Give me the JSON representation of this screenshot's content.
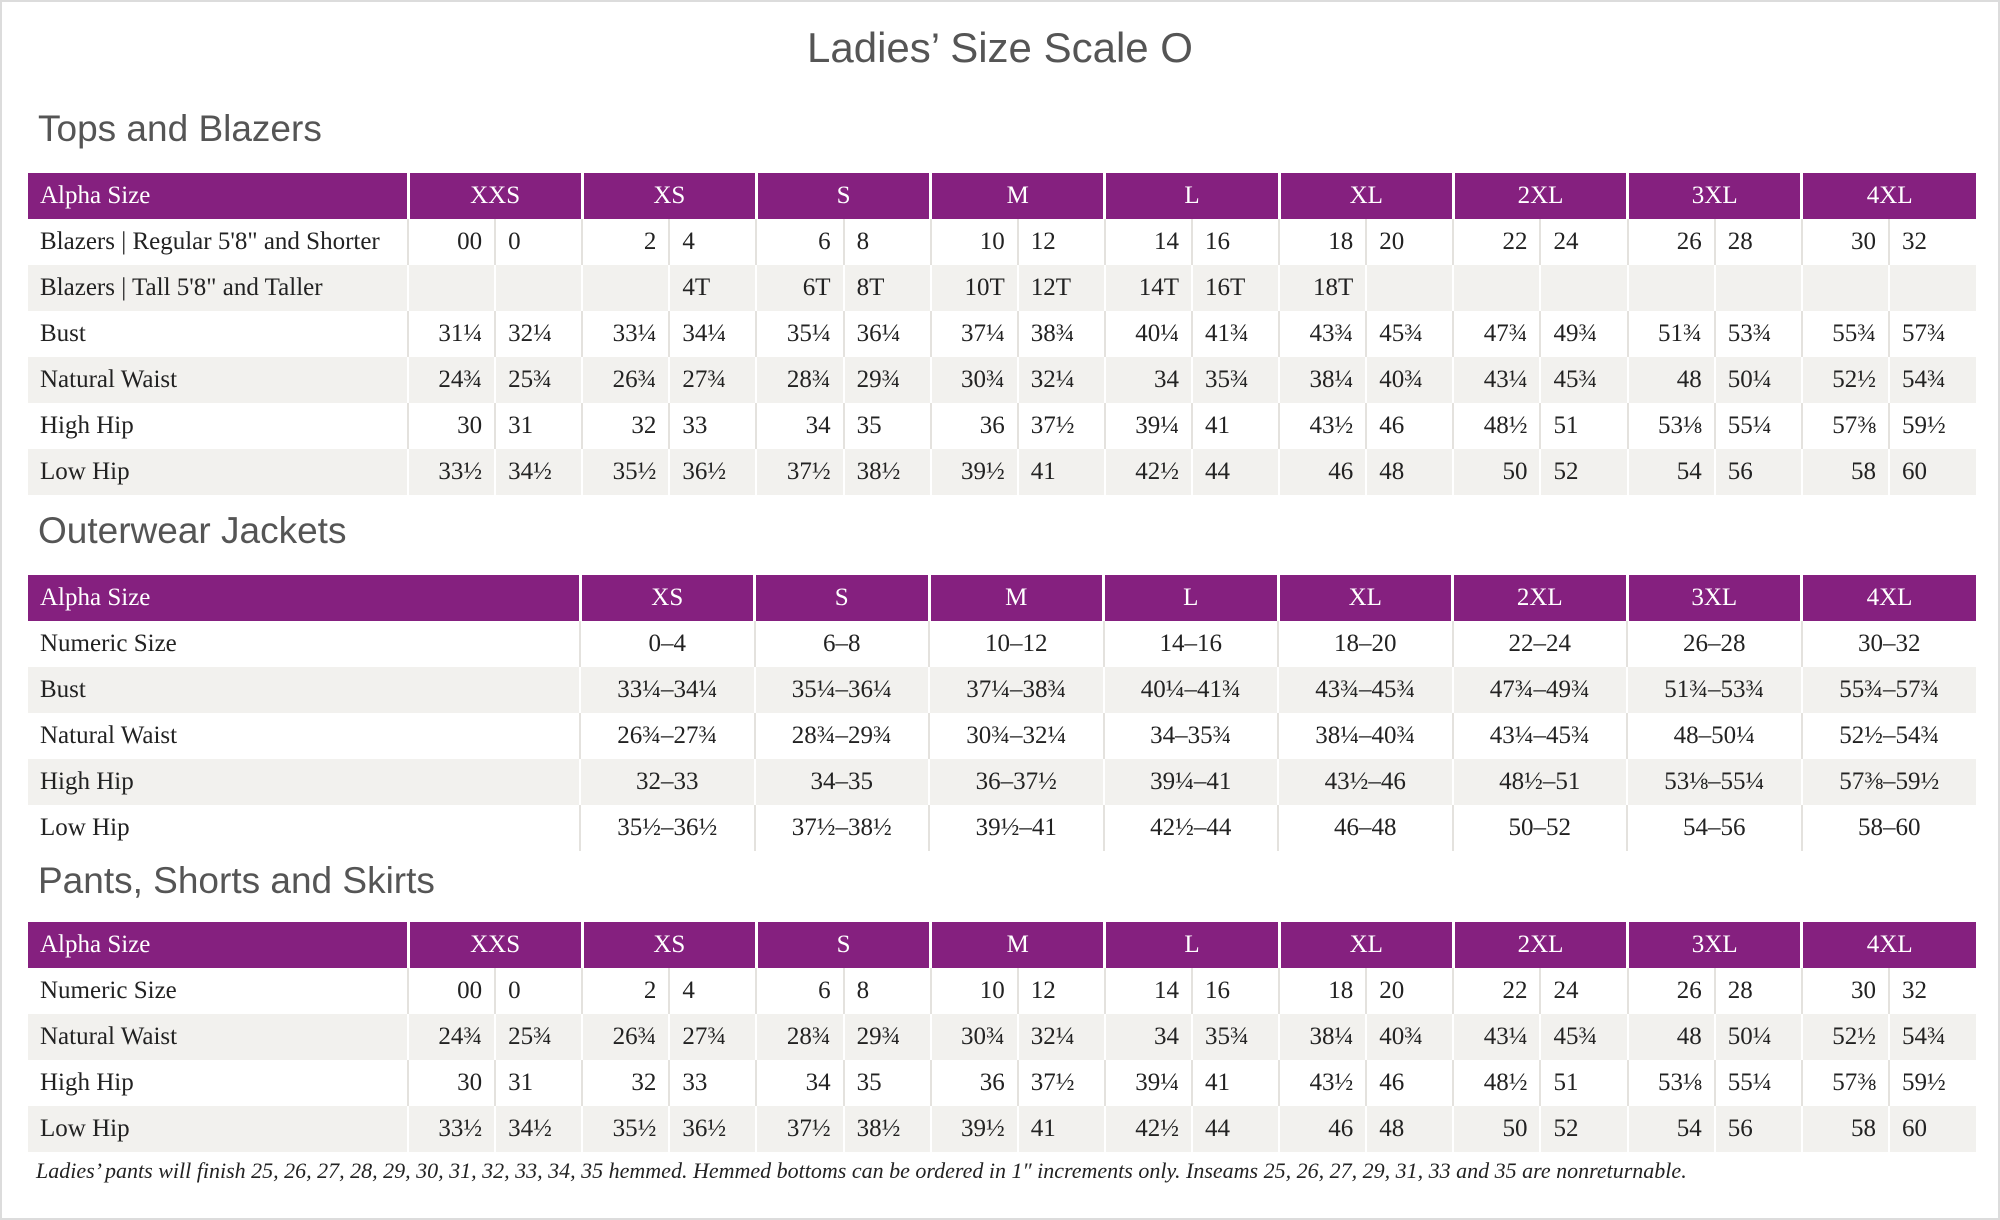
{
  "title": "Ladies’ Size Scale O",
  "sections": [
    {
      "title": "Tops and Blazers",
      "header": [
        "Alpha Size",
        "XXS",
        "XS",
        "S",
        "M",
        "L",
        "XL",
        "2XL",
        "3XL",
        "4XL"
      ],
      "rows": [
        [
          "Blazers | Regular 5'8\" and Shorter",
          "00",
          "0",
          "2",
          "4",
          "6",
          "8",
          "10",
          "12",
          "14",
          "16",
          "18",
          "20",
          "22",
          "24",
          "26",
          "28",
          "30",
          "32"
        ],
        [
          "Blazers | Tall 5'8\" and Taller",
          null,
          null,
          null,
          "4T",
          "6T",
          "8T",
          "10T",
          "12T",
          "14T",
          "16T",
          "18T",
          null,
          null,
          null,
          null,
          null,
          null,
          null
        ],
        [
          "Bust",
          "31¼",
          "32¼",
          "33¼",
          "34¼",
          "35¼",
          "36¼",
          "37¼",
          "38¾",
          "40¼",
          "41¾",
          "43¾",
          "45¾",
          "47¾",
          "49¾",
          "51¾",
          "53¾",
          "55¾",
          "57¾"
        ],
        [
          "Natural Waist",
          "24¾",
          "25¾",
          "26¾",
          "27¾",
          "28¾",
          "29¾",
          "30¾",
          "32¼",
          "34",
          "35¾",
          "38¼",
          "40¾",
          "43¼",
          "45¾",
          "48",
          "50¼",
          "52½",
          "54¾"
        ],
        [
          "High Hip",
          "30",
          "31",
          "32",
          "33",
          "34",
          "35",
          "36",
          "37½",
          "39¼",
          "41",
          "43½",
          "46",
          "48½",
          "51",
          "53⅛",
          "55¼",
          "57⅜",
          "59½"
        ],
        [
          "Low Hip",
          "33½",
          "34½",
          "35½",
          "36½",
          "37½",
          "38½",
          "39½",
          "41",
          "42½",
          "44",
          "46",
          "48",
          "50",
          "52",
          "54",
          "56",
          "58",
          "60"
        ]
      ]
    },
    {
      "title": "Outerwear Jackets",
      "header": [
        "Alpha Size",
        "XS",
        "S",
        "M",
        "L",
        "XL",
        "2XL",
        "3XL",
        "4XL"
      ],
      "rows": [
        [
          "Numeric Size",
          "0–4",
          "6–8",
          "10–12",
          "14–16",
          "18–20",
          "22–24",
          "26–28",
          "30–32"
        ],
        [
          "Bust",
          "33¼–34¼",
          "35¼–36¼",
          "37¼–38¾",
          "40¼–41¾",
          "43¾–45¾",
          "47¾–49¾",
          "51¾–53¾",
          "55¾–57¾"
        ],
        [
          "Natural Waist",
          "26¾–27¾",
          "28¾–29¾",
          "30¾–32¼",
          "34–35¾",
          "38¼–40¾",
          "43¼–45¾",
          "48–50¼",
          "52½–54¾"
        ],
        [
          "High Hip",
          "32–33",
          "34–35",
          "36–37½",
          "39¼–41",
          "43½–46",
          "48½–51",
          "53⅛–55¼",
          "57⅜–59½"
        ],
        [
          "Low Hip",
          "35½–36½",
          "37½–38½",
          "39½–41",
          "42½–44",
          "46–48",
          "50–52",
          "54–56",
          "58–60"
        ]
      ]
    },
    {
      "title": "Pants, Shorts and Skirts",
      "header": [
        "Alpha Size",
        "XXS",
        "XS",
        "S",
        "M",
        "L",
        "XL",
        "2XL",
        "3XL",
        "4XL"
      ],
      "rows": [
        [
          "Numeric Size",
          "00",
          "0",
          "2",
          "4",
          "6",
          "8",
          "10",
          "12",
          "14",
          "16",
          "18",
          "20",
          "22",
          "24",
          "26",
          "28",
          "30",
          "32"
        ],
        [
          "Natural Waist",
          "24¾",
          "25¾",
          "26¾",
          "27¾",
          "28¾",
          "29¾",
          "30¾",
          "32¼",
          "34",
          "35¾",
          "38¼",
          "40¾",
          "43¼",
          "45¾",
          "48",
          "50¼",
          "52½",
          "54¾"
        ],
        [
          "High Hip",
          "30",
          "31",
          "32",
          "33",
          "34",
          "35",
          "36",
          "37½",
          "39¼",
          "41",
          "43½",
          "46",
          "48½",
          "51",
          "53⅛",
          "55¼",
          "57⅜",
          "59½"
        ],
        [
          "Low Hip",
          "33½",
          "34½",
          "35½",
          "36½",
          "37½",
          "38½",
          "39½",
          "41",
          "42½",
          "44",
          "46",
          "48",
          "50",
          "52",
          "54",
          "56",
          "58",
          "60"
        ]
      ]
    }
  ],
  "footnote": "Ladies’ pants will finish 25, 26, 27, 28, 29, 30, 31, 32, 33, 34, 35 hemmed. Hemmed bottoms can be ordered in 1″ increments only. Inseams 25, 26, 27, 29, 31, 33 and 35 are nonreturnable."
}
